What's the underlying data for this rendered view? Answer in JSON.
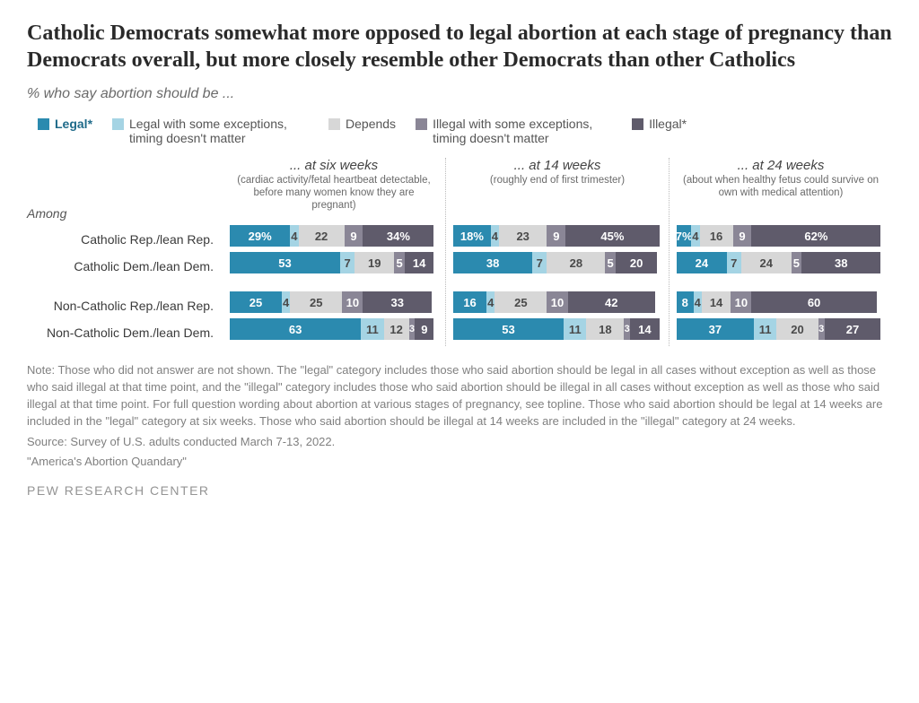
{
  "title": "Catholic Democrats somewhat more opposed to legal abortion at each stage of pregnancy than Democrats overall, but more closely resemble other Democrats than other Catholics",
  "subtitle": "% who say abortion should be ...",
  "colors": {
    "legal": "#2b8aaf",
    "legal_some": "#a5d4e4",
    "depends": "#d7d7d7",
    "illegal_some": "#8a8696",
    "illegal": "#5f5b6b",
    "grid": "#bbbbbb",
    "text": "#333333",
    "note": "#808080",
    "bg": "#ffffff"
  },
  "legend": [
    {
      "key": "legal",
      "label": "Legal*",
      "color": "#2b8aaf",
      "bold": true
    },
    {
      "key": "legal_some",
      "label": "Legal with some exceptions, timing doesn't matter",
      "color": "#a5d4e4"
    },
    {
      "key": "depends",
      "label": "Depends",
      "color": "#d7d7d7"
    },
    {
      "key": "illegal_some",
      "label": "Illegal with some exceptions, timing doesn't matter",
      "color": "#8a8696"
    },
    {
      "key": "illegal",
      "label": "Illegal*",
      "color": "#5f5b6b"
    }
  ],
  "row_heading": "Among",
  "groups": [
    {
      "rows": [
        {
          "label": "Catholic Rep./lean Rep.",
          "key": "cath_rep"
        },
        {
          "label": "Catholic Dem./lean Dem.",
          "key": "cath_dem"
        }
      ]
    },
    {
      "rows": [
        {
          "label": "Non-Catholic Rep./lean Rep.",
          "key": "nc_rep"
        },
        {
          "label": "Non-Catholic Dem./lean Dem.",
          "key": "nc_dem"
        }
      ]
    }
  ],
  "panels": [
    {
      "title": "... at six weeks",
      "sub": "(cardiac activity/fetal heartbeat detectable, before many women know they are pregnant)",
      "data": {
        "cath_rep": {
          "legal": 29,
          "legal_some": 4,
          "depends": 22,
          "illegal_some": 9,
          "illegal": 34,
          "suffix": "%"
        },
        "cath_dem": {
          "legal": 53,
          "legal_some": 7,
          "depends": 19,
          "illegal_some": 5,
          "illegal": 14
        },
        "nc_rep": {
          "legal": 25,
          "legal_some": 4,
          "depends": 25,
          "illegal_some": 10,
          "illegal": 33
        },
        "nc_dem": {
          "legal": 63,
          "legal_some": 11,
          "depends": 12,
          "illegal_some": 3,
          "illegal": 9
        }
      }
    },
    {
      "title": "... at 14 weeks",
      "sub": "(roughly end of first trimester)",
      "data": {
        "cath_rep": {
          "legal": 18,
          "legal_some": 4,
          "depends": 23,
          "illegal_some": 9,
          "illegal": 45,
          "suffix": "%"
        },
        "cath_dem": {
          "legal": 38,
          "legal_some": 7,
          "depends": 28,
          "illegal_some": 5,
          "illegal": 20
        },
        "nc_rep": {
          "legal": 16,
          "legal_some": 4,
          "depends": 25,
          "illegal_some": 10,
          "illegal": 42
        },
        "nc_dem": {
          "legal": 53,
          "legal_some": 11,
          "depends": 18,
          "illegal_some": 3,
          "illegal": 14
        }
      }
    },
    {
      "title": "... at 24 weeks",
      "sub": "(about when healthy fetus could survive on own with medical attention)",
      "data": {
        "cath_rep": {
          "legal": 7,
          "legal_some": 4,
          "depends": 16,
          "illegal_some": 9,
          "illegal": 62,
          "suffix": "%"
        },
        "cath_dem": {
          "legal": 24,
          "legal_some": 7,
          "depends": 24,
          "illegal_some": 5,
          "illegal": 38
        },
        "nc_rep": {
          "legal": 8,
          "legal_some": 4,
          "depends": 14,
          "illegal_some": 10,
          "illegal": 60
        },
        "nc_dem": {
          "legal": 37,
          "legal_some": 11,
          "depends": 20,
          "illegal_some": 3,
          "illegal": 27
        }
      }
    }
  ],
  "bar_scale_max": 100,
  "segment_text_min_value": 4,
  "note": "Note: Those who did not answer are not shown. The \"legal\" category includes those who said abortion should be legal in all cases without exception as well as those who said illegal at that time point, and the \"illegal\" category includes those who said abortion should be illegal in all cases without exception as well as those who said illegal at that time point. For full question wording about abortion at various stages of pregnancy, see topline. Those who said abortion should be legal at 14 weeks are included in the \"legal\" category at six weeks. Those who said abortion should be illegal at 14 weeks are included in the \"illegal\" category at 24 weeks.",
  "source": "Source: Survey of U.S. adults conducted March 7-13, 2022.",
  "report": "\"America's Abortion Quandary\"",
  "footer": "PEW RESEARCH CENTER"
}
